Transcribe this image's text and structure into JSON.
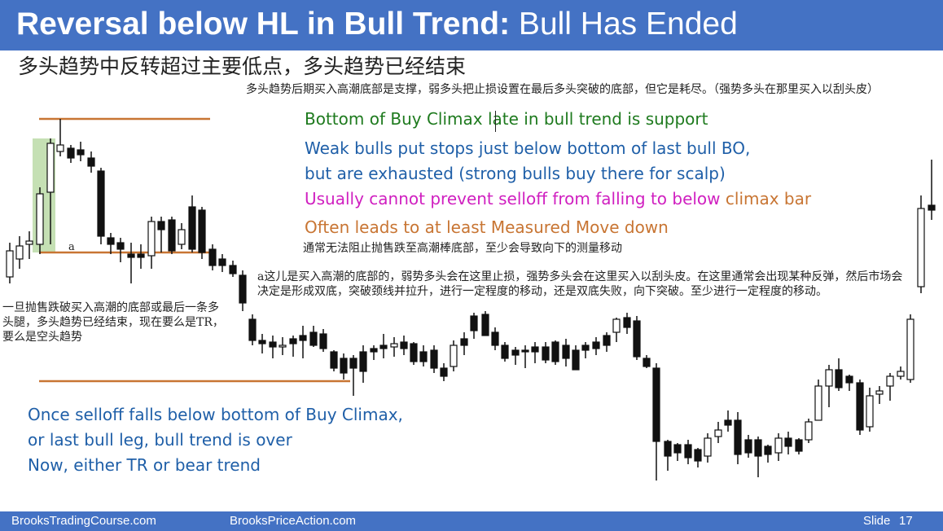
{
  "slide": {
    "title_bold": "Reversal below HL in Bull Trend:",
    "title_rest": " Bull Has Ended",
    "subtitle_cn": "多头趋势中反转超过主要低点，多头趋势已经结束"
  },
  "notes": {
    "top_cn": "多头趋势后期买入高潮底部是支撑，弱多头把止损设置在最后多头突破的底部，但它是耗尽。（强势多头在那里买入以刮头皮）",
    "mid_cn": "通常无法阻止抛售跌至高潮棒底部，至少会导致向下的测量移动",
    "a_cn": "a这儿是买入高潮的底部的，弱势多头会在这里止损，强势多头会在这里买入以刮头皮。在这里通常会出现某种反弹，然后市场会决定是形成双底，突破颈线并拉升，进行一定程度的移动，还是双底失败，向下突破。至少进行一定程度的移动。",
    "left_cn": "一旦抛售跌破买入高潮的底部或最后一条多头腿，多头趋势已经结束，现在要么是TR，要么是空头趋势",
    "a_label": "a"
  },
  "annotations": {
    "line1": "Bottom of Buy Climax late in bull trend is support",
    "line2": "Weak bulls put stops just below bottom of last bull BO,",
    "line3": "but are exhausted (strong bulls buy there for scalp)",
    "line4a": "Usually cannot prevent selloff from falling to below ",
    "line4b": "climax bar",
    "line5": "Often leads to at least Measured Move down",
    "bottom1": "Once selloff falls below bottom of Buy Climax,",
    "bottom2": "or last bull leg, bull trend is over",
    "bottom3": "Now, either TR or bear trend"
  },
  "colors": {
    "header_blue": "#4472c4",
    "green_text": "#1e7a1e",
    "blue_text": "#1f5fa8",
    "magenta_text": "#d020c0",
    "orange": "#c87533",
    "highlight_green": "#c5e0b4"
  },
  "footer": {
    "site1": "BrooksTradingCourse.com",
    "site2": "BrooksPriceAction.com",
    "slide_label": "Slide",
    "slide_number": "17"
  }
}
